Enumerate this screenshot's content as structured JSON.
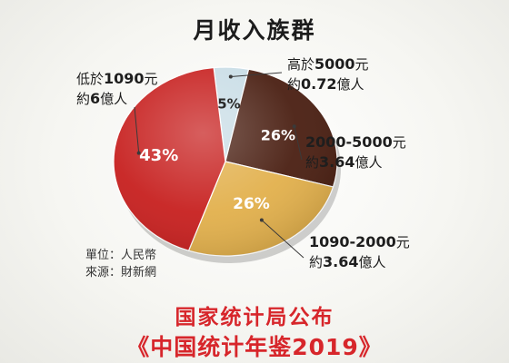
{
  "title": "月收入族群",
  "chart_data": {
    "type": "pie",
    "title": "月收入族群",
    "slices": [
      {
        "label": "高於5000元",
        "value": 5,
        "display": "5%",
        "people": "約0.72億人",
        "color": "#c9dde6"
      },
      {
        "label": "2000-5000元",
        "value": 26,
        "display": "26%",
        "people": "約3.64億人",
        "color": "#4a1f12"
      },
      {
        "label": "1090-2000元",
        "value": 26,
        "display": "26%",
        "people": "約3.64億人",
        "color": "#e2b04c"
      },
      {
        "label": "低於1090元",
        "value": 43,
        "display": "43%",
        "people": "約6億人",
        "color": "#c7201f"
      }
    ]
  },
  "callouts": {
    "low": {
      "line1_prefix": "低於",
      "line1_num": "1090",
      "line1_suffix": "元",
      "line2_prefix": "約",
      "line2_num": "6",
      "line2_suffix": "億人"
    },
    "high": {
      "line1_prefix": "高於",
      "line1_num": "5000",
      "line1_suffix": "元",
      "line2_prefix": "約",
      "line2_num": "0.72",
      "line2_suffix": "億人"
    },
    "mid": {
      "line1_num": "2000-5000",
      "line1_suffix": "元",
      "line2_prefix": "約",
      "line2_num": "3.64",
      "line2_suffix": "億人"
    },
    "lower_mid": {
      "line1_num": "1090-2000",
      "line1_suffix": "元",
      "line2_prefix": "約",
      "line2_num": "3.64",
      "line2_suffix": "億人"
    }
  },
  "meta": {
    "unit": "單位：人民幣",
    "source": "來源：財新網"
  },
  "footer": {
    "line1": "国家统计局公布",
    "line2": "《中国统计年鉴2019》"
  }
}
